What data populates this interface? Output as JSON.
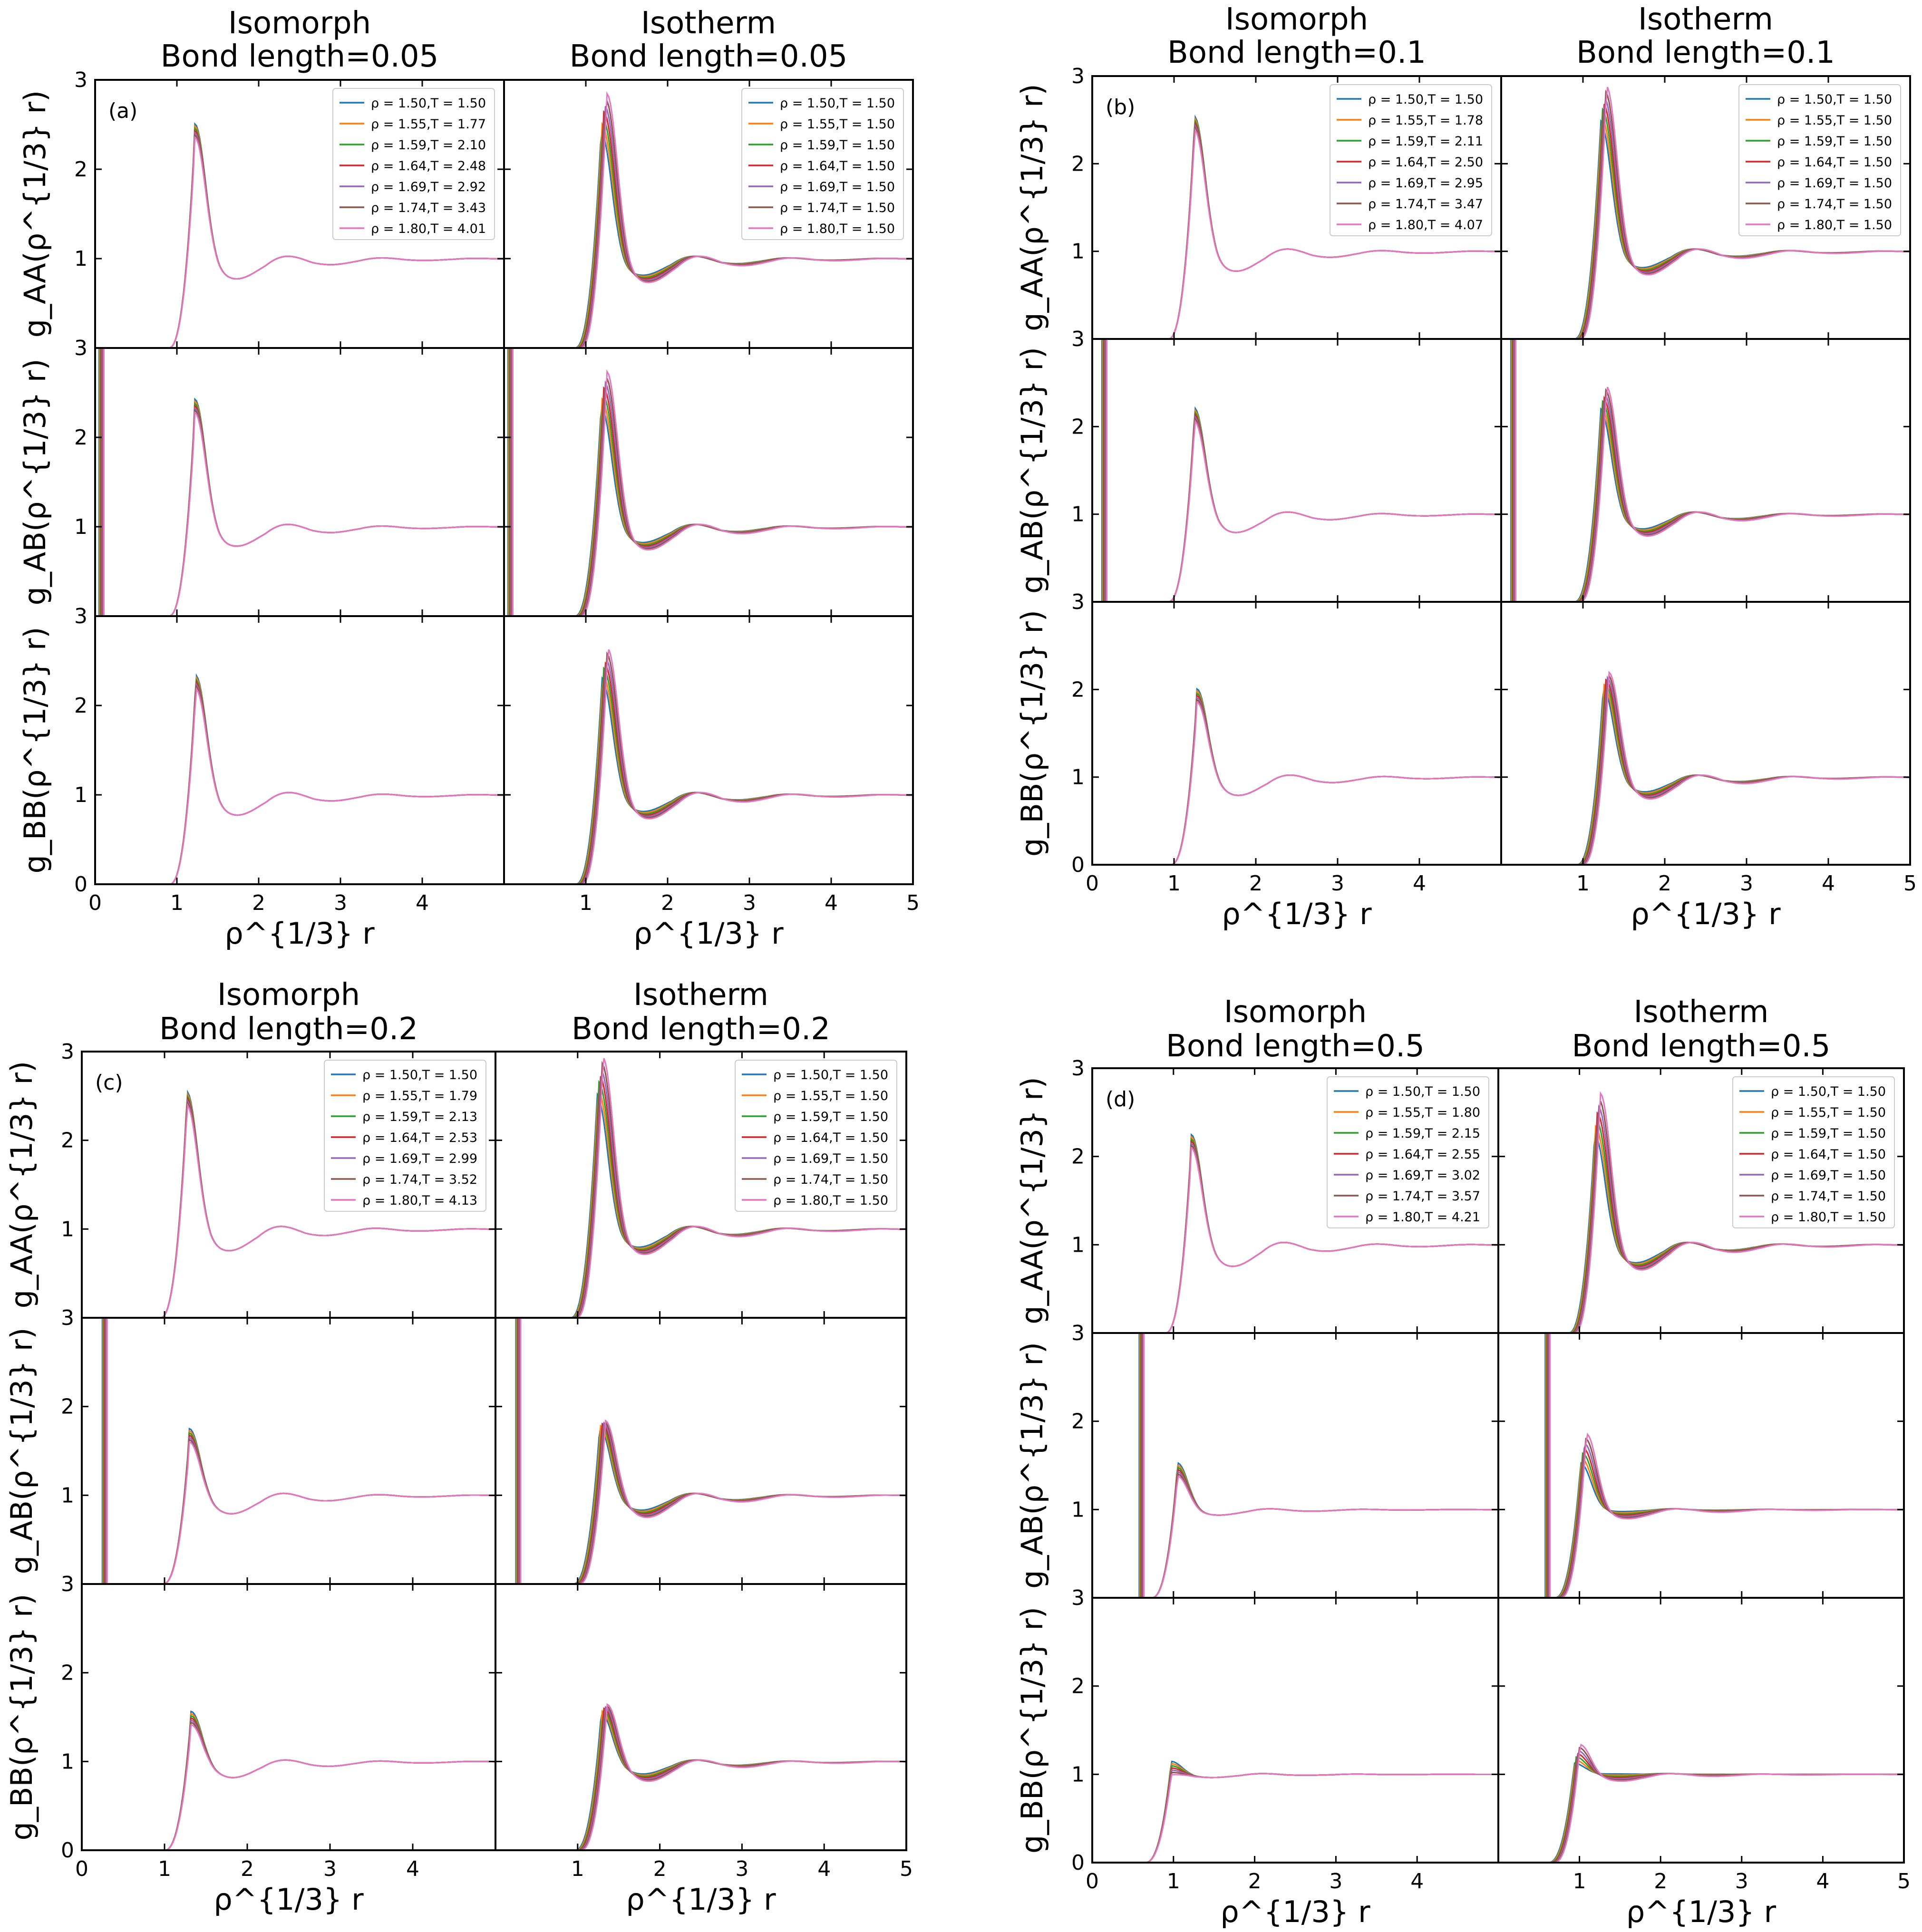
{
  "chart_data": {
    "type": "line",
    "xlabel": "ρ^{1/3} r",
    "ylabels": [
      "g_AA(ρ^{1/3} r)",
      "g_AB(ρ^{1/3} r)",
      "g_BB(ρ^{1/3} r)"
    ],
    "xlim": [
      0,
      5
    ],
    "ylim": [
      0,
      3
    ],
    "x_ticks_inner": [
      "0",
      "1",
      "2",
      "3",
      "4"
    ],
    "x_ticks_outer": [
      "1",
      "2",
      "3",
      "4",
      "5"
    ],
    "y_ticks_top": [
      "1",
      "2",
      "3"
    ],
    "y_ticks": [
      "1",
      "2"
    ],
    "y_ticks_bottom": [
      "0",
      "1",
      "2"
    ],
    "colors": [
      "#1f77b4",
      "#ff7f0e",
      "#2ca02c",
      "#d62728",
      "#9467bd",
      "#8c564b",
      "#e377c2"
    ],
    "densities": [
      "1.50",
      "1.55",
      "1.59",
      "1.64",
      "1.69",
      "1.74",
      "1.80"
    ],
    "groups": [
      {
        "tag": "(a)",
        "bond": "0.05",
        "iso_title": "Isomorph",
        "iso_bond_label": "Bond length=0.05",
        "ist_title": "Isotherm",
        "ist_bond_label": "Bond length=0.05",
        "isomorph_legend": [
          "ρ = 1.50,T = 1.50",
          "ρ = 1.55,T = 1.77",
          "ρ = 1.59,T = 2.10",
          "ρ = 1.64,T = 2.48",
          "ρ = 1.69,T = 2.92",
          "ρ = 1.74,T = 3.43",
          "ρ = 1.80,T = 4.01"
        ],
        "isotherm_legend": [
          "ρ = 1.50,T = 1.50",
          "ρ = 1.55,T = 1.50",
          "ρ = 1.59,T = 1.50",
          "ρ = 1.64,T = 1.50",
          "ρ = 1.69,T = 1.50",
          "ρ = 1.74,T = 1.50",
          "ρ = 1.80,T = 1.50"
        ],
        "AA": {
          "iso_peak": 2.42,
          "ist_peak": [
            2.35,
            2.76
          ],
          "x1": 1.22,
          "trough": 0.75,
          "second": 1.16
        },
        "AB": {
          "iso_peak": 2.34,
          "ist_peak": [
            2.28,
            2.65
          ],
          "x1": 1.22,
          "trough": 0.76,
          "second": 1.16,
          "spike_x": 0.05
        },
        "BB": {
          "iso_peak": 2.25,
          "ist_peak": [
            2.22,
            2.55
          ],
          "x1": 1.23,
          "trough": 0.75,
          "second": 1.16
        }
      },
      {
        "tag": "(b)",
        "bond": "0.1",
        "iso_title": "Isomorph",
        "iso_bond_label": "Bond length=0.1",
        "ist_title": "Isotherm",
        "ist_bond_label": "Bond length=0.1",
        "isomorph_legend": [
          "ρ = 1.50,T = 1.50",
          "ρ = 1.55,T = 1.78",
          "ρ = 1.59,T = 2.11",
          "ρ = 1.64,T = 2.50",
          "ρ = 1.69,T = 2.95",
          "ρ = 1.74,T = 3.47",
          "ρ = 1.80,T = 4.07"
        ],
        "isotherm_legend": [
          "ρ = 1.50,T = 1.50",
          "ρ = 1.55,T = 1.50",
          "ρ = 1.59,T = 1.50",
          "ρ = 1.64,T = 1.50",
          "ρ = 1.69,T = 1.50",
          "ρ = 1.74,T = 1.50",
          "ρ = 1.80,T = 1.50"
        ],
        "AA": {
          "iso_peak": 2.45,
          "ist_peak": [
            2.4,
            2.8
          ],
          "x1": 1.25,
          "trough": 0.75,
          "second": 1.16
        },
        "AB": {
          "iso_peak": 2.13,
          "ist_peak": [
            2.12,
            2.38
          ],
          "x1": 1.25,
          "trough": 0.77,
          "second": 1.15,
          "spike_x": 0.12
        },
        "BB": {
          "iso_peak": 1.93,
          "ist_peak": [
            1.95,
            2.12
          ],
          "x1": 1.28,
          "trough": 0.77,
          "second": 1.14
        }
      },
      {
        "tag": "(c)",
        "bond": "0.2",
        "iso_title": "Isomorph",
        "iso_bond_label": "Bond length=0.2",
        "ist_title": "Isotherm",
        "ist_bond_label": "Bond length=0.2",
        "isomorph_legend": [
          "ρ = 1.50,T = 1.50",
          "ρ = 1.55,T = 1.79",
          "ρ = 1.59,T = 2.13",
          "ρ = 1.64,T = 2.53",
          "ρ = 1.69,T = 2.99",
          "ρ = 1.74,T = 3.52",
          "ρ = 1.80,T = 4.13"
        ],
        "isotherm_legend": [
          "ρ = 1.50,T = 1.50",
          "ρ = 1.55,T = 1.50",
          "ρ = 1.59,T = 1.50",
          "ρ = 1.64,T = 1.50",
          "ρ = 1.69,T = 1.50",
          "ρ = 1.74,T = 1.50",
          "ρ = 1.80,T = 1.50"
        ],
        "AA": {
          "iso_peak": 2.45,
          "ist_peak": [
            2.42,
            2.84
          ],
          "x1": 1.27,
          "trough": 0.73,
          "second": 1.18
        },
        "AB": {
          "iso_peak": 1.68,
          "ist_peak": [
            1.7,
            1.77
          ],
          "x1": 1.3,
          "trough": 0.77,
          "second": 1.13,
          "spike_x": 0.25
        },
        "BB": {
          "iso_peak": 1.51,
          "ist_peak": [
            1.5,
            1.59
          ],
          "x1": 1.32,
          "trough": 0.8,
          "second": 1.1
        }
      },
      {
        "tag": "(d)",
        "bond": "0.5",
        "iso_title": "Isomorph",
        "iso_bond_label": "Bond length=0.5",
        "ist_title": "Isotherm",
        "ist_bond_label": "Bond length=0.5",
        "isomorph_legend": [
          "ρ = 1.50,T = 1.50",
          "ρ = 1.55,T = 1.80",
          "ρ = 1.59,T = 2.15",
          "ρ = 1.64,T = 2.55",
          "ρ = 1.69,T = 3.02",
          "ρ = 1.74,T = 3.57",
          "ρ = 1.80,T = 4.21"
        ],
        "isotherm_legend": [
          "ρ = 1.50,T = 1.50",
          "ρ = 1.55,T = 1.50",
          "ρ = 1.59,T = 1.50",
          "ρ = 1.64,T = 1.50",
          "ρ = 1.69,T = 1.50",
          "ρ = 1.74,T = 1.50",
          "ρ = 1.80,T = 1.50"
        ],
        "AA": {
          "iso_peak": 2.16,
          "ist_peak": [
            2.18,
            2.63
          ],
          "x1": 1.22,
          "trough": 0.73,
          "second": 1.16
        },
        "AB": {
          "iso_peak": 1.5,
          "ist_peak": [
            1.5,
            1.83
          ],
          "x1": 1.05,
          "trough": 0.93,
          "second": 1.05,
          "spike_x": 0.58
        },
        "BB": {
          "iso_peak": 1.12,
          "ist_peak": [
            1.1,
            1.31
          ],
          "x1": 0.97,
          "trough": 0.96,
          "second": 1.05
        }
      }
    ]
  }
}
